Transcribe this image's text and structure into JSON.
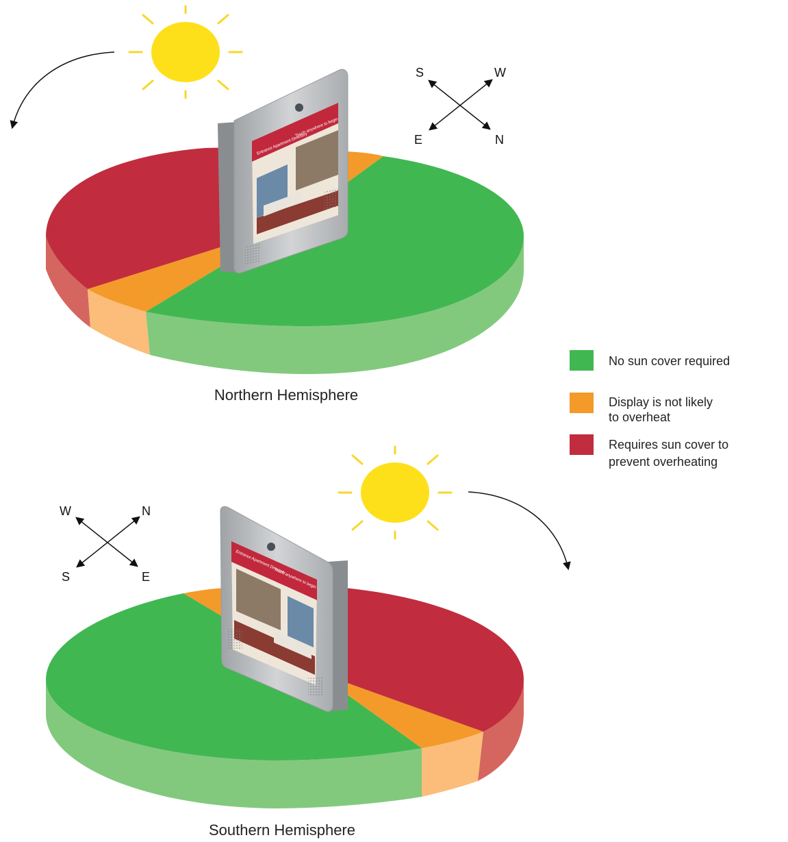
{
  "colors": {
    "green": "#41b751",
    "green_side": "#82c97e",
    "orange": "#f39a2a",
    "orange_side": "#fbbd79",
    "red": "#c12d3e",
    "red_side": "#d4665f",
    "sun": "#fde01a",
    "sun_ray": "#f8d72a",
    "kiosk_frame": "#b8bbbe",
    "kiosk_screen_header": "#c1283c"
  },
  "legend": [
    {
      "color_key": "green",
      "lines": [
        "No sun cover required"
      ]
    },
    {
      "color_key": "orange",
      "lines": [
        "Display is not likely",
        "to overheat"
      ]
    },
    {
      "color_key": "red",
      "lines": [
        "Requires sun cover to",
        "prevent overheating"
      ]
    }
  ],
  "northern": {
    "caption": "Northern Hemisphere",
    "compass": {
      "top_left": "S",
      "top_right": "W",
      "bottom_left": "E",
      "bottom_right": "N"
    },
    "sun_icon": "sun-icon",
    "arrow_icon": "curved-arrow-icon",
    "kiosk_text": [
      "Entrance Apartment Directory",
      "Touch anywhere to begin"
    ]
  },
  "southern": {
    "caption": "Southern Hemisphere",
    "compass": {
      "top_left": "W",
      "top_right": "N",
      "bottom_left": "S",
      "bottom_right": "E"
    },
    "sun_icon": "sun-icon",
    "arrow_icon": "curved-arrow-icon",
    "kiosk_text": [
      "Entrance Apartment Directory",
      "Touch anywhere to begin"
    ]
  }
}
